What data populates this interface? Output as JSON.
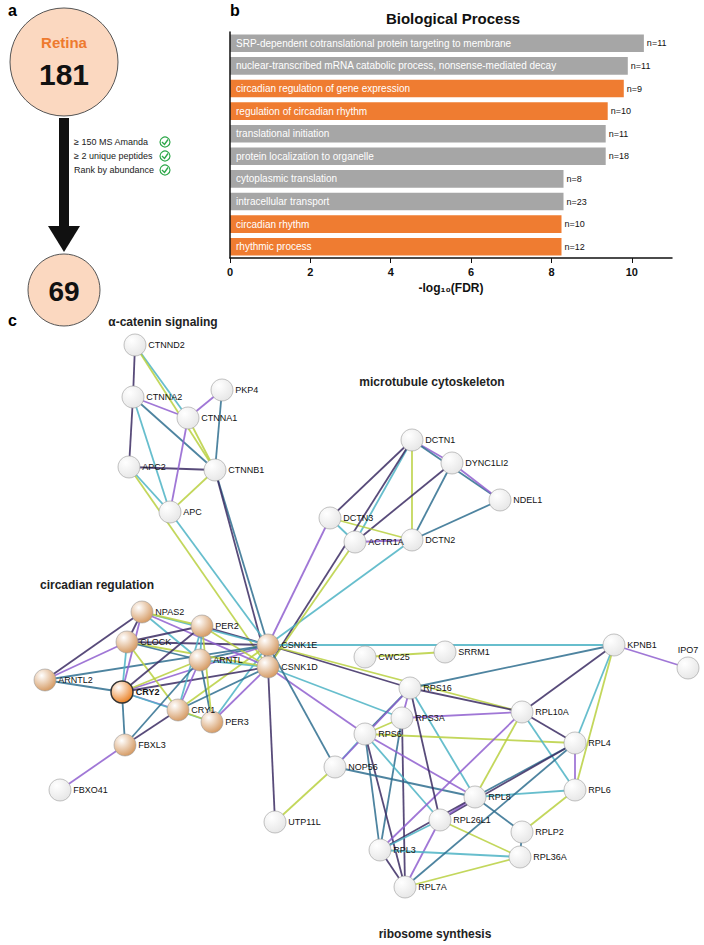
{
  "panel_a": {
    "label": "a",
    "top": {
      "title": "Retina",
      "value": 181
    },
    "criteria": [
      "≥ 150 MS Amanda",
      "≥ 2 unique peptides",
      "Rank by abundance"
    ],
    "bottom": {
      "value": 69
    }
  },
  "chart_data": [
    {
      "type": "bar",
      "panel": "b",
      "title": "Biological Process",
      "orientation": "horizontal",
      "categories": [
        "SRP-dependent cotranslational protein targeting to membrane",
        "nuclear-transcribed mRNA catabolic process, nonsense-mediated decay",
        "circadian regulation of gene expression",
        "regulation of circadian rhythm",
        "translational initiation",
        "protein localization to organelle",
        "cytoplasmic translation",
        "intracellular transport",
        "circadian rhythm",
        "rhythmic process"
      ],
      "values": [
        10.3,
        9.9,
        9.8,
        9.4,
        9.35,
        9.35,
        8.3,
        8.3,
        8.25,
        8.25
      ],
      "count_labels": [
        "n=11",
        "n=11",
        "n=9",
        "n=10",
        "n=11",
        "n=18",
        "n=8",
        "n=23",
        "n=10",
        "n=12"
      ],
      "colors": [
        "#a6a6a6",
        "#a6a6a6",
        "#ef7c31",
        "#ef7c31",
        "#a6a6a6",
        "#a6a6a6",
        "#a6a6a6",
        "#a6a6a6",
        "#ef7c31",
        "#ef7c31"
      ],
      "xlabel": "-log₁₀(FDR)",
      "xlim": [
        0,
        11
      ],
      "xticks": [
        0,
        2,
        4,
        6,
        8,
        10
      ],
      "grid": false
    },
    {
      "type": "graph",
      "panel": "c",
      "query": "CRY2",
      "clusters": [
        "α-catenin signaling",
        "microtubule cytoskeleton",
        "circadian regulation",
        "ribosome synthesis"
      ],
      "nodes": [
        {
          "name": "CTNND2",
          "color": "#e6e6e6"
        },
        {
          "name": "PKP4",
          "color": "#e6e6e6"
        },
        {
          "name": "CTNNA2",
          "color": "#e6e6e6"
        },
        {
          "name": "CTNNA1",
          "color": "#e6e6e6"
        },
        {
          "name": "APC2",
          "color": "#e6e6e6"
        },
        {
          "name": "CTNNB1",
          "color": "#e6e6e6"
        },
        {
          "name": "APC",
          "color": "#e6e6e6"
        },
        {
          "name": "DCTN1",
          "color": "#e6e6e6"
        },
        {
          "name": "DYNC1LI2",
          "color": "#e6e6e6"
        },
        {
          "name": "NDEL1",
          "color": "#e6e6e6"
        },
        {
          "name": "DCTN3",
          "color": "#e6e6e6"
        },
        {
          "name": "ACTR1A",
          "color": "#e6e6e6"
        },
        {
          "name": "DCTN2",
          "color": "#e6e6e6"
        },
        {
          "name": "CSNK1E",
          "color": "#d4975e"
        },
        {
          "name": "CSNK1D",
          "color": "#d4975e"
        },
        {
          "name": "NPAS2",
          "color": "#d4975e"
        },
        {
          "name": "PER2",
          "color": "#d4975e"
        },
        {
          "name": "CLOCK",
          "color": "#d4975e"
        },
        {
          "name": "ARNTL",
          "color": "#d4975e"
        },
        {
          "name": "ARNTL2",
          "color": "#d4975e"
        },
        {
          "name": "CRY2",
          "color": "#e97d1e"
        },
        {
          "name": "CRY1",
          "color": "#d4975e"
        },
        {
          "name": "PER3",
          "color": "#d4975e"
        },
        {
          "name": "FBXL3",
          "color": "#d4975e"
        },
        {
          "name": "FBXO41",
          "color": "#e6e6e6"
        },
        {
          "name": "CWC25",
          "color": "#e6e6e6"
        },
        {
          "name": "SRRM1",
          "color": "#e6e6e6"
        },
        {
          "name": "KPNB1",
          "color": "#e6e6e6"
        },
        {
          "name": "IPO7",
          "color": "#e6e6e6"
        },
        {
          "name": "RPS16",
          "color": "#e6e6e6"
        },
        {
          "name": "RPL10A",
          "color": "#e6e6e6"
        },
        {
          "name": "RPS3A",
          "color": "#e6e6e6"
        },
        {
          "name": "RPS6",
          "color": "#e6e6e6"
        },
        {
          "name": "RPL4",
          "color": "#e6e6e6"
        },
        {
          "name": "NOP56",
          "color": "#e6e6e6"
        },
        {
          "name": "RPL6",
          "color": "#e6e6e6"
        },
        {
          "name": "UTP11L",
          "color": "#e6e6e6"
        },
        {
          "name": "RPL8",
          "color": "#e6e6e6"
        },
        {
          "name": "RPL26L1",
          "color": "#e6e6e6"
        },
        {
          "name": "RPLP2",
          "color": "#e6e6e6"
        },
        {
          "name": "RPL36A",
          "color": "#e6e6e6"
        },
        {
          "name": "RPL3",
          "color": "#e6e6e6"
        },
        {
          "name": "RPL7A",
          "color": "#e6e6e6"
        }
      ],
      "edges": [
        [
          "CTNND2",
          "CTNNA2"
        ],
        [
          "CTNND2",
          "CTNNA1"
        ],
        [
          "CTNND2",
          "CTNNB1"
        ],
        [
          "CTNNA2",
          "CTNNA1"
        ],
        [
          "CTNNA2",
          "CTNNB1"
        ],
        [
          "CTNNA2",
          "APC2"
        ],
        [
          "CTNNA2",
          "APC"
        ],
        [
          "CTNNA1",
          "CTNNB1"
        ],
        [
          "CTNNA1",
          "PKP4"
        ],
        [
          "PKP4",
          "CTNNB1"
        ],
        [
          "APC2",
          "CTNNB1"
        ],
        [
          "APC2",
          "APC"
        ],
        [
          "APC",
          "CTNNB1"
        ],
        [
          "CTNNA1",
          "APC"
        ],
        [
          "CTNNB1",
          "CSNK1E"
        ],
        [
          "CTNNB1",
          "CSNK1D"
        ],
        [
          "APC",
          "CSNK1E"
        ],
        [
          "APC2",
          "CSNK1D"
        ],
        [
          "DCTN1",
          "DYNC1LI2"
        ],
        [
          "DCTN1",
          "NDEL1"
        ],
        [
          "DCTN1",
          "DCTN3"
        ],
        [
          "DCTN1",
          "ACTR1A"
        ],
        [
          "DCTN1",
          "DCTN2"
        ],
        [
          "DYNC1LI2",
          "NDEL1"
        ],
        [
          "DYNC1LI2",
          "DCTN2"
        ],
        [
          "DYNC1LI2",
          "ACTR1A"
        ],
        [
          "DCTN3",
          "ACTR1A"
        ],
        [
          "DCTN3",
          "DCTN2"
        ],
        [
          "ACTR1A",
          "DCTN2"
        ],
        [
          "NDEL1",
          "DCTN2"
        ],
        [
          "DCTN1",
          "CSNK1D"
        ],
        [
          "DCTN2",
          "CSNK1E"
        ],
        [
          "ACTR1A",
          "CSNK1D"
        ],
        [
          "DCTN3",
          "CSNK1E"
        ],
        [
          "CSNK1E",
          "CSNK1D"
        ],
        [
          "CSNK1E",
          "PER2"
        ],
        [
          "CSNK1E",
          "PER3"
        ],
        [
          "CSNK1E",
          "CRY1"
        ],
        [
          "CSNK1E",
          "CRY2"
        ],
        [
          "CSNK1E",
          "ARNTL"
        ],
        [
          "CSNK1E",
          "CLOCK"
        ],
        [
          "CSNK1E",
          "NPAS2"
        ],
        [
          "CSNK1D",
          "PER2"
        ],
        [
          "CSNK1D",
          "PER3"
        ],
        [
          "CSNK1D",
          "CRY1"
        ],
        [
          "CSNK1D",
          "CRY2"
        ],
        [
          "CSNK1D",
          "ARNTL"
        ],
        [
          "CSNK1D",
          "CLOCK"
        ],
        [
          "CSNK1D",
          "NPAS2"
        ],
        [
          "CSNK1E",
          "ARNTL2"
        ],
        [
          "NPAS2",
          "CLOCK"
        ],
        [
          "NPAS2",
          "ARNTL"
        ],
        [
          "NPAS2",
          "PER2"
        ],
        [
          "NPAS2",
          "CRY2"
        ],
        [
          "CLOCK",
          "ARNTL"
        ],
        [
          "CLOCK",
          "PER2"
        ],
        [
          "CLOCK",
          "CRY2"
        ],
        [
          "CLOCK",
          "CRY1"
        ],
        [
          "CLOCK",
          "ARNTL2"
        ],
        [
          "ARNTL2",
          "CRY2"
        ],
        [
          "ARNTL2",
          "NPAS2"
        ],
        [
          "ARNTL",
          "PER2"
        ],
        [
          "ARNTL",
          "CRY2"
        ],
        [
          "ARNTL",
          "CRY1"
        ],
        [
          "ARNTL",
          "PER3"
        ],
        [
          "PER2",
          "CRY2"
        ],
        [
          "PER2",
          "CRY1"
        ],
        [
          "PER2",
          "PER3"
        ],
        [
          "CRY2",
          "CRY1"
        ],
        [
          "CRY2",
          "FBXL3"
        ],
        [
          "CRY1",
          "FBXL3"
        ],
        [
          "CRY2",
          "PER3"
        ],
        [
          "PER3",
          "CRY1"
        ],
        [
          "FBXL3",
          "FBXO41"
        ],
        [
          "FBXL3",
          "ARNTL"
        ],
        [
          "CSNK1E",
          "RPS16"
        ],
        [
          "CSNK1D",
          "RPS3A"
        ],
        [
          "CSNK1E",
          "RPL10A"
        ],
        [
          "CSNK1D",
          "RPS6"
        ],
        [
          "CSNK1E",
          "NOP56"
        ],
        [
          "CSNK1D",
          "UTP11L"
        ],
        [
          "CSNK1E",
          "KPNB1"
        ],
        [
          "CWC25",
          "SRRM1"
        ],
        [
          "KPNB1",
          "IPO7"
        ],
        [
          "KPNB1",
          "RPS16"
        ],
        [
          "KPNB1",
          "RPL10A"
        ],
        [
          "KPNB1",
          "RPL4"
        ],
        [
          "KPNB1",
          "RPL6"
        ],
        [
          "RPS16",
          "RPS3A"
        ],
        [
          "RPS16",
          "RPS6"
        ],
        [
          "RPS16",
          "RPL10A"
        ],
        [
          "RPS16",
          "RPL8"
        ],
        [
          "RPS3A",
          "RPS6"
        ],
        [
          "RPS3A",
          "RPL10A"
        ],
        [
          "RPS3A",
          "RPL3"
        ],
        [
          "RPS3A",
          "RPL7A"
        ],
        [
          "RPS6",
          "NOP56"
        ],
        [
          "RPS6",
          "RPL4"
        ],
        [
          "RPS6",
          "RPL8"
        ],
        [
          "RPS6",
          "RPL3"
        ],
        [
          "RPS6",
          "RPL7A"
        ],
        [
          "RPS6",
          "RPL26L1"
        ],
        [
          "NOP56",
          "UTP11L"
        ],
        [
          "NOP56",
          "RPS16"
        ],
        [
          "NOP56",
          "RPL8"
        ],
        [
          "RPL10A",
          "RPL4"
        ],
        [
          "RPL10A",
          "RPL6"
        ],
        [
          "RPL10A",
          "RPL8"
        ],
        [
          "RPL4",
          "RPL6"
        ],
        [
          "RPL4",
          "RPL8"
        ],
        [
          "RPL4",
          "RPL26L1"
        ],
        [
          "RPL6",
          "RPL8"
        ],
        [
          "RPL6",
          "RPLP2"
        ],
        [
          "RPL8",
          "RPL26L1"
        ],
        [
          "RPL8",
          "RPLP2"
        ],
        [
          "RPL8",
          "RPL3"
        ],
        [
          "RPL26L1",
          "RPL3"
        ],
        [
          "RPL26L1",
          "RPL36A"
        ],
        [
          "RPL26L1",
          "RPL7A"
        ],
        [
          "RPLP2",
          "RPL36A"
        ],
        [
          "RPL3",
          "RPL7A"
        ],
        [
          "RPL3",
          "RPL36A"
        ],
        [
          "RPL7A",
          "RPL36A"
        ],
        [
          "RPL10A",
          "RPL3"
        ],
        [
          "RPL4",
          "RPL7A"
        ],
        [
          "RPS16",
          "RPL26L1"
        ]
      ]
    }
  ]
}
